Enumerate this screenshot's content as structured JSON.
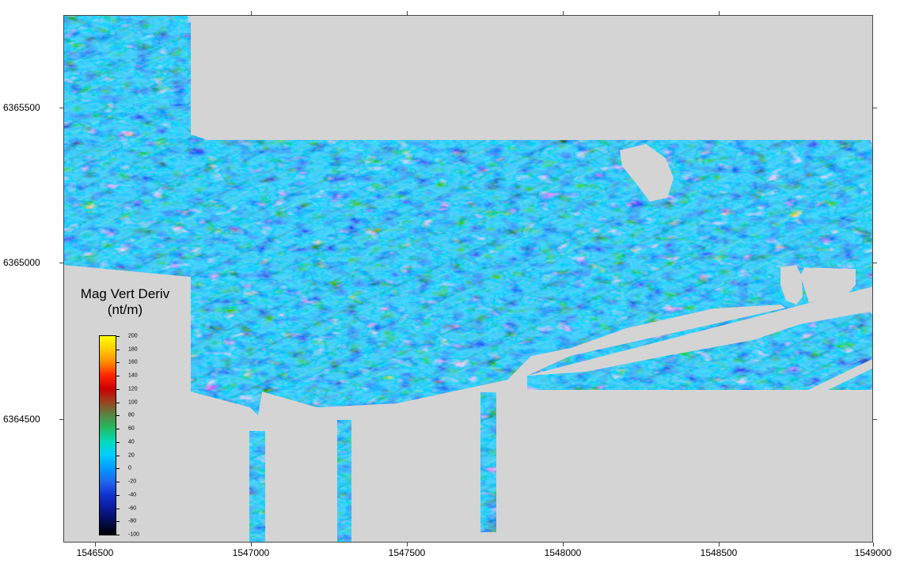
{
  "map": {
    "x_ticks": [
      "1546500",
      "1547000",
      "1547500",
      "1548000",
      "1548500",
      "1549000"
    ],
    "y_ticks": [
      "6365500",
      "6365000",
      "6364500"
    ],
    "background_color": "#d4d4d4",
    "survey_style": "magnetic vertical derivative anomaly texture"
  },
  "legend": {
    "title_line1": "Mag Vert Deriv",
    "title_line2": "(nt/m)",
    "labels": [
      "200",
      "180",
      "160",
      "140",
      "120",
      "100",
      "80",
      "60",
      "40",
      "20",
      "0",
      "-20",
      "-40",
      "-60",
      "-80",
      "-100"
    ],
    "colors": [
      "#ffff00",
      "#ffcc00",
      "#ff8800",
      "#ff2200",
      "#cc0000",
      "#994422",
      "#558844",
      "#22bb66",
      "#00ddbb",
      "#00ccff",
      "#0099ff",
      "#2266ee",
      "#1133cc",
      "#0a1a99",
      "#050c55",
      "#000000"
    ]
  }
}
